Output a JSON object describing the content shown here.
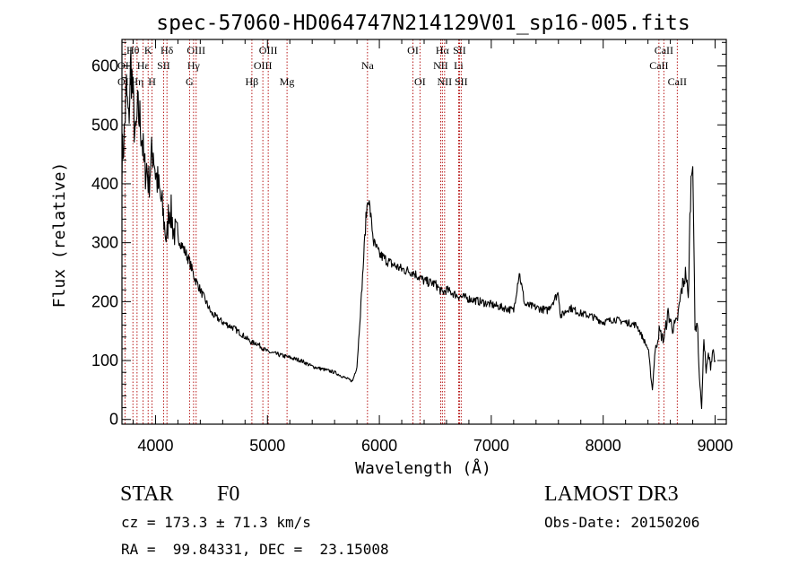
{
  "chart_data": {
    "type": "line",
    "title": "spec-57060-HD064747N214129V01_sp16-005.fits",
    "xlabel": "Wavelength (Å)",
    "ylabel": "Flux (relative)",
    "xlim": [
      3700,
      9100
    ],
    "ylim": [
      -8,
      645
    ],
    "xticks": [
      4000,
      5000,
      6000,
      7000,
      8000,
      9000
    ],
    "yticks": [
      0,
      100,
      200,
      300,
      400,
      500,
      600
    ],
    "x_minor_step": 200,
    "y_minor_step": 20,
    "line_color": "#000000",
    "marker_color": "#b00000",
    "series": [
      {
        "name": "spectrum",
        "x": [
          3700,
          3720,
          3740,
          3760,
          3780,
          3800,
          3820,
          3840,
          3860,
          3880,
          3900,
          3920,
          3940,
          3960,
          3980,
          4000,
          4020,
          4040,
          4060,
          4080,
          4100,
          4120,
          4140,
          4160,
          4200,
          4250,
          4300,
          4350,
          4400,
          4500,
          4600,
          4700,
          4800,
          4861,
          4900,
          5000,
          5100,
          5200,
          5300,
          5400,
          5500,
          5600,
          5700,
          5760,
          5800,
          5840,
          5880,
          5900,
          5920,
          5950,
          6000,
          6100,
          6200,
          6300,
          6400,
          6500,
          6563,
          6600,
          6700,
          6800,
          6900,
          7000,
          7100,
          7200,
          7250,
          7300,
          7400,
          7500,
          7600,
          7620,
          7700,
          7800,
          7900,
          8000,
          8100,
          8200,
          8300,
          8400,
          8440,
          8460,
          8500,
          8540,
          8580,
          8620,
          8660,
          8700,
          8740,
          8760,
          8780,
          8800,
          8820,
          8840,
          8860,
          8880,
          8900,
          8920,
          8940,
          8960,
          8980,
          9000
        ],
        "y": [
          440,
          480,
          560,
          500,
          610,
          540,
          470,
          520,
          510,
          480,
          420,
          430,
          400,
          440,
          460,
          420,
          400,
          380,
          360,
          330,
          300,
          360,
          350,
          320,
          310,
          290,
          270,
          240,
          220,
          180,
          165,
          155,
          140,
          130,
          130,
          115,
          110,
          105,
          100,
          90,
          85,
          80,
          70,
          65,
          90,
          210,
          340,
          380,
          350,
          300,
          280,
          265,
          255,
          250,
          235,
          230,
          215,
          220,
          210,
          205,
          200,
          195,
          190,
          185,
          250,
          195,
          190,
          185,
          215,
          175,
          190,
          180,
          175,
          165,
          170,
          165,
          160,
          120,
          50,
          110,
          150,
          135,
          180,
          155,
          165,
          220,
          250,
          200,
          380,
          460,
          150,
          170,
          70,
          20,
          140,
          80,
          110,
          90,
          120,
          100
        ]
      }
    ],
    "lines": [
      {
        "label": "Hθ",
        "x": 3798,
        "row": 0
      },
      {
        "label": "OII",
        "x": 3727,
        "row": 1
      },
      {
        "label": "OII",
        "x": 3727,
        "row": 2
      },
      {
        "label": "Hη",
        "x": 3835,
        "row": 2
      },
      {
        "label": "Hε",
        "x": 3889,
        "row": 1
      },
      {
        "label": "K",
        "x": 3934,
        "row": 0
      },
      {
        "label": "H",
        "x": 3969,
        "row": 2
      },
      {
        "label": "SII",
        "x": 4072,
        "row": 1
      },
      {
        "label": "Hδ",
        "x": 4102,
        "row": 0
      },
      {
        "label": "OIII",
        "x": 4363,
        "row": 0
      },
      {
        "label": "Hγ",
        "x": 4340,
        "row": 1
      },
      {
        "label": "G",
        "x": 4304,
        "row": 2
      },
      {
        "label": "Hβ",
        "x": 4861,
        "row": 2
      },
      {
        "label": "OIII",
        "x": 5007,
        "row": 0
      },
      {
        "label": "OIII",
        "x": 4959,
        "row": 1
      },
      {
        "label": "Mg",
        "x": 5175,
        "row": 2
      },
      {
        "label": "Na",
        "x": 5894,
        "row": 1
      },
      {
        "label": "OI",
        "x": 6300,
        "row": 0
      },
      {
        "label": "OI",
        "x": 6363,
        "row": 2
      },
      {
        "label": "Hα",
        "x": 6563,
        "row": 0
      },
      {
        "label": "SII",
        "x": 6716,
        "row": 0
      },
      {
        "label": "NII",
        "x": 6548,
        "row": 1
      },
      {
        "label": "Li",
        "x": 6708,
        "row": 1
      },
      {
        "label": "NII",
        "x": 6583,
        "row": 2
      },
      {
        "label": "SII",
        "x": 6731,
        "row": 2
      },
      {
        "label": "CaII",
        "x": 8542,
        "row": 0
      },
      {
        "label": "CaII",
        "x": 8498,
        "row": 1
      },
      {
        "label": "CaII",
        "x": 8662,
        "row": 2
      }
    ]
  },
  "info": {
    "object_type": "STAR",
    "subclass": "F0",
    "survey": "LAMOST DR3",
    "cz": "cz = 173.3 ± 71.3 km/s",
    "obs_date": "Obs-Date: 20150206",
    "coords": "RA =  99.84331, DEC =  23.15008"
  }
}
